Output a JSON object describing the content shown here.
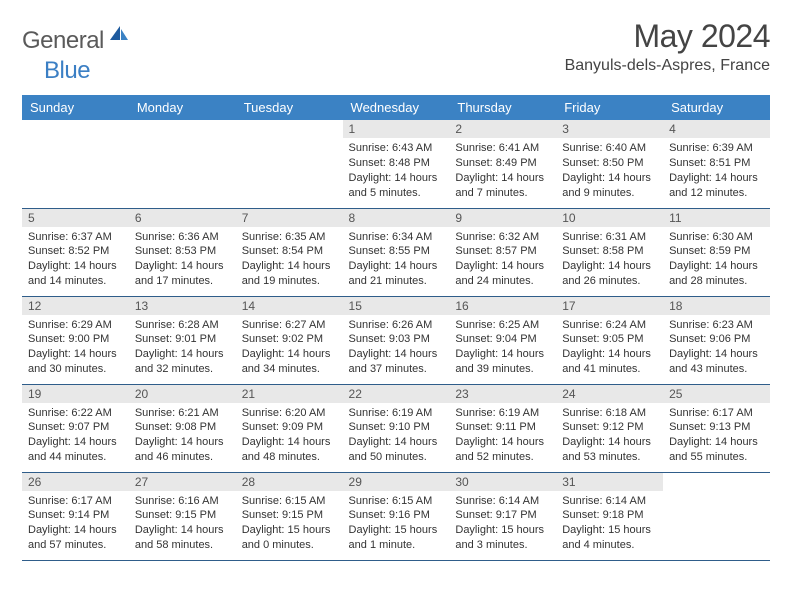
{
  "brand": {
    "text_gray": "General",
    "text_blue": "Blue"
  },
  "title": "May 2024",
  "location": "Banyuls-dels-Aspres, France",
  "colors": {
    "header_bg": "#3b82c4",
    "header_text": "#ffffff",
    "daybar_bg": "#e8e8e8",
    "row_border": "#2f5d8a",
    "logo_gray": "#5a5a5a",
    "logo_blue": "#3b7fc4",
    "body_text": "#333333"
  },
  "typography": {
    "month_title_size_pt": 24,
    "location_size_pt": 12,
    "dayhead_size_pt": 10,
    "cell_text_size_pt": 8
  },
  "day_headers": [
    "Sunday",
    "Monday",
    "Tuesday",
    "Wednesday",
    "Thursday",
    "Friday",
    "Saturday"
  ],
  "weeks": [
    [
      null,
      null,
      null,
      {
        "n": "1",
        "sr": "Sunrise: 6:43 AM",
        "ss": "Sunset: 8:48 PM",
        "d1": "Daylight: 14 hours",
        "d2": "and 5 minutes."
      },
      {
        "n": "2",
        "sr": "Sunrise: 6:41 AM",
        "ss": "Sunset: 8:49 PM",
        "d1": "Daylight: 14 hours",
        "d2": "and 7 minutes."
      },
      {
        "n": "3",
        "sr": "Sunrise: 6:40 AM",
        "ss": "Sunset: 8:50 PM",
        "d1": "Daylight: 14 hours",
        "d2": "and 9 minutes."
      },
      {
        "n": "4",
        "sr": "Sunrise: 6:39 AM",
        "ss": "Sunset: 8:51 PM",
        "d1": "Daylight: 14 hours",
        "d2": "and 12 minutes."
      }
    ],
    [
      {
        "n": "5",
        "sr": "Sunrise: 6:37 AM",
        "ss": "Sunset: 8:52 PM",
        "d1": "Daylight: 14 hours",
        "d2": "and 14 minutes."
      },
      {
        "n": "6",
        "sr": "Sunrise: 6:36 AM",
        "ss": "Sunset: 8:53 PM",
        "d1": "Daylight: 14 hours",
        "d2": "and 17 minutes."
      },
      {
        "n": "7",
        "sr": "Sunrise: 6:35 AM",
        "ss": "Sunset: 8:54 PM",
        "d1": "Daylight: 14 hours",
        "d2": "and 19 minutes."
      },
      {
        "n": "8",
        "sr": "Sunrise: 6:34 AM",
        "ss": "Sunset: 8:55 PM",
        "d1": "Daylight: 14 hours",
        "d2": "and 21 minutes."
      },
      {
        "n": "9",
        "sr": "Sunrise: 6:32 AM",
        "ss": "Sunset: 8:57 PM",
        "d1": "Daylight: 14 hours",
        "d2": "and 24 minutes."
      },
      {
        "n": "10",
        "sr": "Sunrise: 6:31 AM",
        "ss": "Sunset: 8:58 PM",
        "d1": "Daylight: 14 hours",
        "d2": "and 26 minutes."
      },
      {
        "n": "11",
        "sr": "Sunrise: 6:30 AM",
        "ss": "Sunset: 8:59 PM",
        "d1": "Daylight: 14 hours",
        "d2": "and 28 minutes."
      }
    ],
    [
      {
        "n": "12",
        "sr": "Sunrise: 6:29 AM",
        "ss": "Sunset: 9:00 PM",
        "d1": "Daylight: 14 hours",
        "d2": "and 30 minutes."
      },
      {
        "n": "13",
        "sr": "Sunrise: 6:28 AM",
        "ss": "Sunset: 9:01 PM",
        "d1": "Daylight: 14 hours",
        "d2": "and 32 minutes."
      },
      {
        "n": "14",
        "sr": "Sunrise: 6:27 AM",
        "ss": "Sunset: 9:02 PM",
        "d1": "Daylight: 14 hours",
        "d2": "and 34 minutes."
      },
      {
        "n": "15",
        "sr": "Sunrise: 6:26 AM",
        "ss": "Sunset: 9:03 PM",
        "d1": "Daylight: 14 hours",
        "d2": "and 37 minutes."
      },
      {
        "n": "16",
        "sr": "Sunrise: 6:25 AM",
        "ss": "Sunset: 9:04 PM",
        "d1": "Daylight: 14 hours",
        "d2": "and 39 minutes."
      },
      {
        "n": "17",
        "sr": "Sunrise: 6:24 AM",
        "ss": "Sunset: 9:05 PM",
        "d1": "Daylight: 14 hours",
        "d2": "and 41 minutes."
      },
      {
        "n": "18",
        "sr": "Sunrise: 6:23 AM",
        "ss": "Sunset: 9:06 PM",
        "d1": "Daylight: 14 hours",
        "d2": "and 43 minutes."
      }
    ],
    [
      {
        "n": "19",
        "sr": "Sunrise: 6:22 AM",
        "ss": "Sunset: 9:07 PM",
        "d1": "Daylight: 14 hours",
        "d2": "and 44 minutes."
      },
      {
        "n": "20",
        "sr": "Sunrise: 6:21 AM",
        "ss": "Sunset: 9:08 PM",
        "d1": "Daylight: 14 hours",
        "d2": "and 46 minutes."
      },
      {
        "n": "21",
        "sr": "Sunrise: 6:20 AM",
        "ss": "Sunset: 9:09 PM",
        "d1": "Daylight: 14 hours",
        "d2": "and 48 minutes."
      },
      {
        "n": "22",
        "sr": "Sunrise: 6:19 AM",
        "ss": "Sunset: 9:10 PM",
        "d1": "Daylight: 14 hours",
        "d2": "and 50 minutes."
      },
      {
        "n": "23",
        "sr": "Sunrise: 6:19 AM",
        "ss": "Sunset: 9:11 PM",
        "d1": "Daylight: 14 hours",
        "d2": "and 52 minutes."
      },
      {
        "n": "24",
        "sr": "Sunrise: 6:18 AM",
        "ss": "Sunset: 9:12 PM",
        "d1": "Daylight: 14 hours",
        "d2": "and 53 minutes."
      },
      {
        "n": "25",
        "sr": "Sunrise: 6:17 AM",
        "ss": "Sunset: 9:13 PM",
        "d1": "Daylight: 14 hours",
        "d2": "and 55 minutes."
      }
    ],
    [
      {
        "n": "26",
        "sr": "Sunrise: 6:17 AM",
        "ss": "Sunset: 9:14 PM",
        "d1": "Daylight: 14 hours",
        "d2": "and 57 minutes."
      },
      {
        "n": "27",
        "sr": "Sunrise: 6:16 AM",
        "ss": "Sunset: 9:15 PM",
        "d1": "Daylight: 14 hours",
        "d2": "and 58 minutes."
      },
      {
        "n": "28",
        "sr": "Sunrise: 6:15 AM",
        "ss": "Sunset: 9:15 PM",
        "d1": "Daylight: 15 hours",
        "d2": "and 0 minutes."
      },
      {
        "n": "29",
        "sr": "Sunrise: 6:15 AM",
        "ss": "Sunset: 9:16 PM",
        "d1": "Daylight: 15 hours",
        "d2": "and 1 minute."
      },
      {
        "n": "30",
        "sr": "Sunrise: 6:14 AM",
        "ss": "Sunset: 9:17 PM",
        "d1": "Daylight: 15 hours",
        "d2": "and 3 minutes."
      },
      {
        "n": "31",
        "sr": "Sunrise: 6:14 AM",
        "ss": "Sunset: 9:18 PM",
        "d1": "Daylight: 15 hours",
        "d2": "and 4 minutes."
      },
      null
    ]
  ]
}
